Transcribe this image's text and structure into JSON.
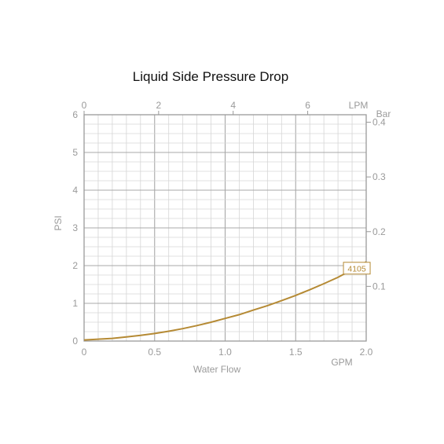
{
  "chart_data": {
    "type": "line",
    "title": "Liquid Side Pressure Drop",
    "xlabel": "Water Flow",
    "ylabel": "PSI",
    "x_unit": "GPM",
    "xlim": [
      0,
      2.0
    ],
    "ylim": [
      0,
      6
    ],
    "x_ticks": [
      "0",
      "0.5",
      "1.0",
      "1.5",
      "2.0"
    ],
    "y_ticks": [
      "0",
      "1",
      "2",
      "3",
      "4",
      "5",
      "6"
    ],
    "secondary_x": {
      "unit": "LPM",
      "range": [
        0,
        7.57
      ],
      "ticks": [
        0,
        2,
        4,
        6
      ],
      "tick_labels": [
        "0",
        "2",
        "4",
        "6"
      ]
    },
    "secondary_y": {
      "unit": "Bar",
      "range": [
        0,
        0.4137
      ],
      "ticks": [
        0.1,
        0.2,
        0.3,
        0.4
      ],
      "tick_labels": [
        "0.1",
        "0.2",
        "0.3",
        "0.4"
      ]
    },
    "grid": true,
    "series": [
      {
        "name": "4105",
        "color": "#b58a34",
        "x": [
          0,
          0.1,
          0.2,
          0.3,
          0.4,
          0.5,
          0.6,
          0.7,
          0.8,
          0.9,
          1.0,
          1.1,
          1.2,
          1.3,
          1.4,
          1.5,
          1.6,
          1.7,
          1.8,
          1.9,
          2.0
        ],
        "y": [
          0.03,
          0.05,
          0.07,
          0.11,
          0.15,
          0.2,
          0.26,
          0.33,
          0.41,
          0.5,
          0.6,
          0.7,
          0.82,
          0.94,
          1.07,
          1.21,
          1.36,
          1.52,
          1.69,
          1.89,
          2.1
        ]
      }
    ]
  }
}
